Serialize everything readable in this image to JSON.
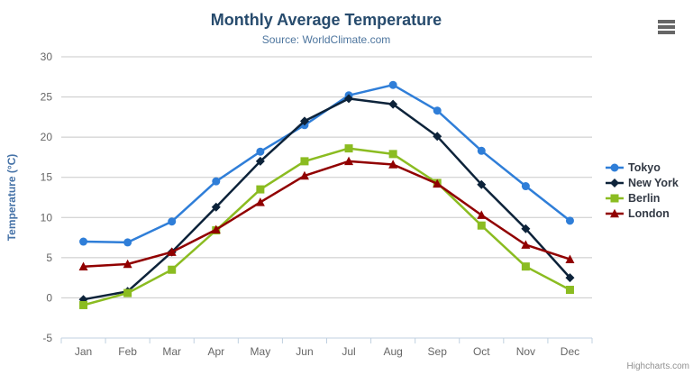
{
  "header": {
    "title": "Monthly Average Temperature",
    "subtitle": "Source: WorldClimate.com"
  },
  "menu": {
    "icon": "hamburger-icon"
  },
  "credits": {
    "label": "Highcharts.com"
  },
  "chart_data": {
    "type": "line",
    "title": "Monthly Average Temperature",
    "subtitle": "Source: WorldClimate.com",
    "categories": [
      "Jan",
      "Feb",
      "Mar",
      "Apr",
      "May",
      "Jun",
      "Jul",
      "Aug",
      "Sep",
      "Oct",
      "Nov",
      "Dec"
    ],
    "xlabel": "",
    "ylabel": "Temperature (°C)",
    "ylim": [
      -5,
      30
    ],
    "ytick_step": 5,
    "grid": true,
    "legend_position": "right",
    "colors": {
      "grid": "#c8c8c8",
      "axis_line": "#c0d0e0",
      "tick_label": "#666666",
      "title": "#274b6d",
      "subtitle": "#4d759e",
      "y_title": "#4572a7"
    },
    "series": [
      {
        "name": "Tokyo",
        "color": "#2f7ed8",
        "marker": "circle",
        "values": [
          7.0,
          6.9,
          9.5,
          14.5,
          18.2,
          21.5,
          25.2,
          26.5,
          23.3,
          18.3,
          13.9,
          9.6
        ]
      },
      {
        "name": "New York",
        "color": "#0d233a",
        "marker": "diamond",
        "values": [
          -0.2,
          0.8,
          5.7,
          11.3,
          17.0,
          22.0,
          24.8,
          24.1,
          20.1,
          14.1,
          8.6,
          2.5
        ]
      },
      {
        "name": "Berlin",
        "color": "#8bbc21",
        "marker": "square",
        "values": [
          -0.9,
          0.6,
          3.5,
          8.4,
          13.5,
          17.0,
          18.6,
          17.9,
          14.3,
          9.0,
          3.9,
          1.0
        ]
      },
      {
        "name": "London",
        "color": "#910000",
        "marker": "triangle",
        "values": [
          3.9,
          4.2,
          5.7,
          8.5,
          11.9,
          15.2,
          17.0,
          16.6,
          14.2,
          10.3,
          6.6,
          4.8
        ]
      }
    ]
  }
}
